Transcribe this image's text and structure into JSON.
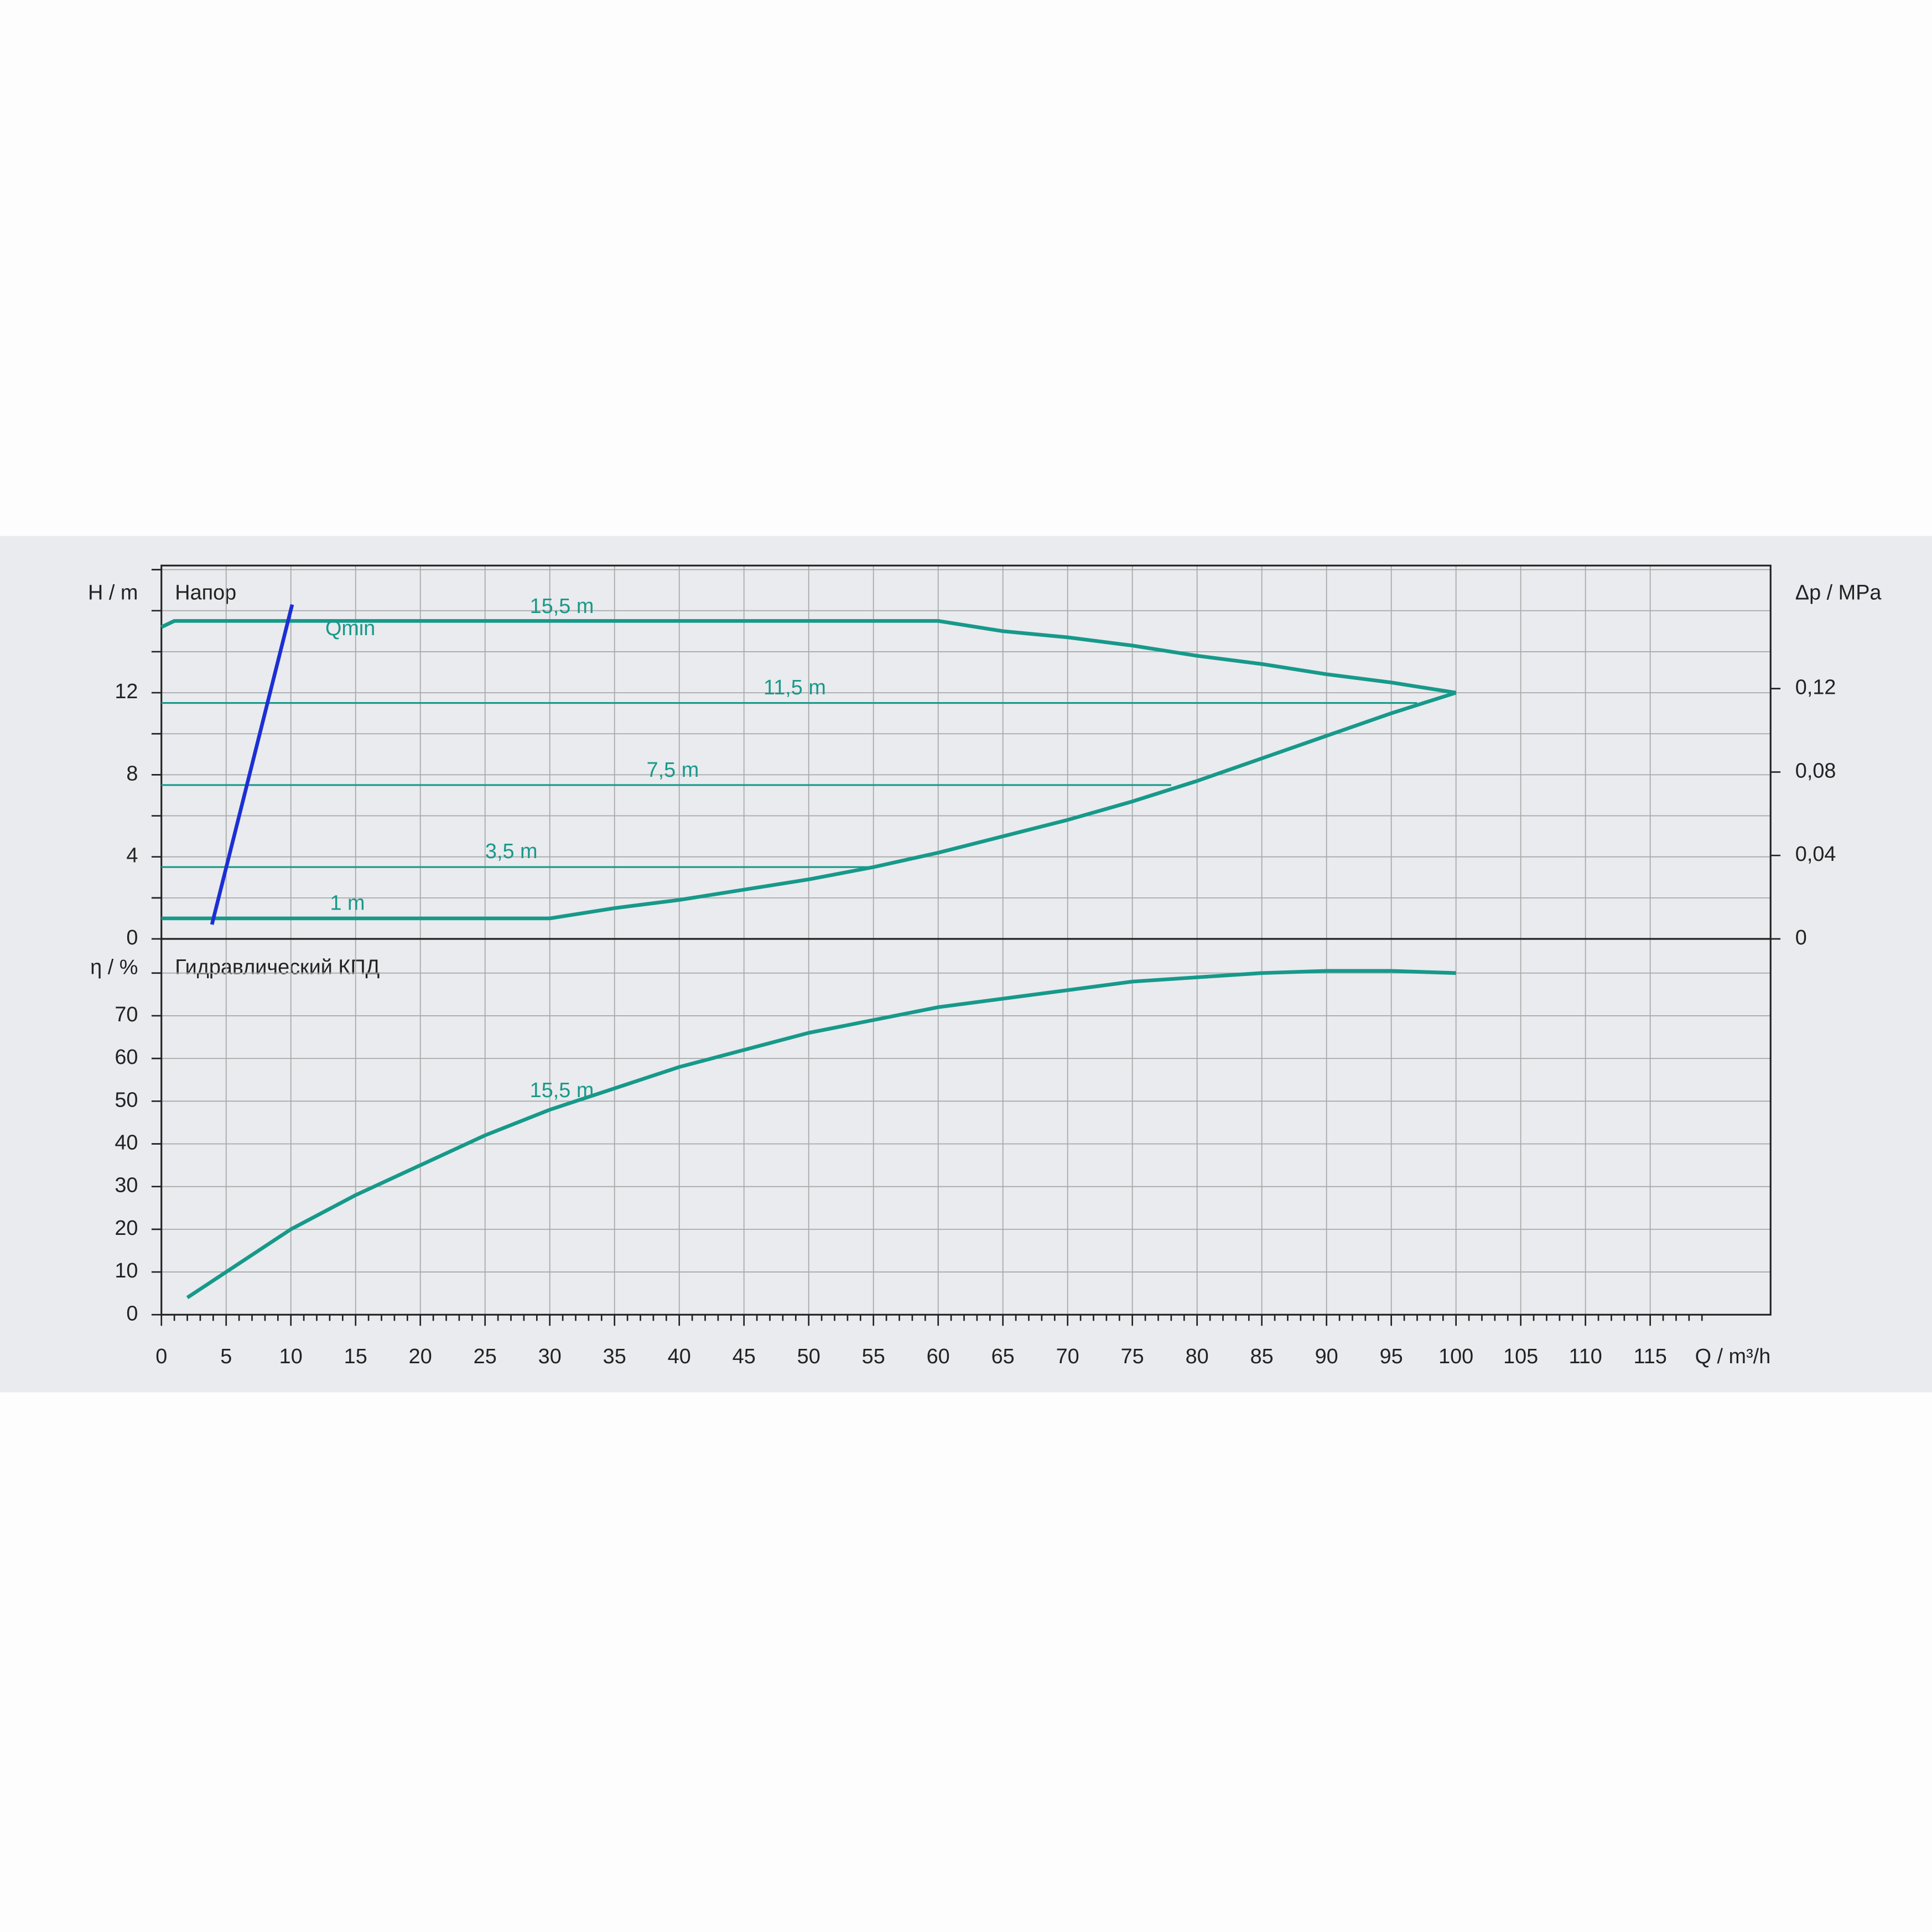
{
  "chart_data": [
    {
      "type": "line",
      "title": "Напор",
      "ylabel": "H / m",
      "y2label": "Δp / MPa",
      "ylim": [
        0,
        18.2
      ],
      "yticks": [
        0,
        4,
        8,
        12
      ],
      "y2lim": [
        0,
        0.179
      ],
      "y2ticks": [
        0,
        {
          "value": 0.04,
          "label": "0,04"
        },
        {
          "value": 0.08,
          "label": "0,08"
        },
        {
          "value": 0.12,
          "label": "0,12"
        }
      ],
      "grid": true,
      "series": [
        {
          "name": "15,5 m",
          "color": "#17998a",
          "x": [
            0,
            1,
            5,
            10,
            20,
            30,
            40,
            50,
            60,
            65,
            70,
            75,
            80,
            85,
            90,
            95,
            100
          ],
          "values": [
            15.2,
            15.5,
            15.5,
            15.5,
            15.5,
            15.5,
            15.5,
            15.5,
            15.5,
            15.0,
            14.7,
            14.3,
            13.8,
            13.4,
            12.9,
            12.5,
            12.0
          ]
        },
        {
          "name": "11,5 m",
          "color": "#17998a",
          "x": [
            0,
            97
          ],
          "values": [
            11.5,
            11.5
          ]
        },
        {
          "name": "7,5 m",
          "color": "#17998a",
          "x": [
            0,
            78
          ],
          "values": [
            7.5,
            7.5
          ]
        },
        {
          "name": "3,5 m",
          "color": "#17998a",
          "x": [
            0,
            55
          ],
          "values": [
            3.5,
            3.5
          ]
        },
        {
          "name": "1 m",
          "color": "#17998a",
          "x": [
            0,
            10,
            20,
            30,
            35,
            40,
            45,
            50,
            55,
            60,
            65,
            70,
            75,
            80,
            85,
            90,
            95,
            100
          ],
          "values": [
            1,
            1,
            1,
            1,
            1.5,
            1.9,
            2.4,
            2.9,
            3.5,
            4.2,
            5.0,
            5.8,
            6.7,
            7.7,
            8.8,
            9.9,
            11.0,
            12.0
          ]
        },
        {
          "name": "Qmin",
          "color": "#1c2fd4",
          "x": [
            3.9,
            10.1
          ],
          "values": [
            0.7,
            16.3
          ]
        }
      ]
    },
    {
      "type": "line",
      "title": "Гидравлический КПД",
      "ylabel": "η / %",
      "xlabel": "Q / m³/h",
      "xlim": [
        0,
        124.3
      ],
      "xticks": [
        0,
        5,
        10,
        15,
        20,
        25,
        30,
        35,
        40,
        45,
        50,
        55,
        60,
        65,
        70,
        75,
        80,
        85,
        90,
        95,
        100,
        105,
        110,
        115
      ],
      "ylim": [
        0,
        88
      ],
      "yticks": [
        0,
        10,
        20,
        30,
        40,
        50,
        60,
        70
      ],
      "grid": true,
      "series": [
        {
          "name": "15,5 m",
          "color": "#17998a",
          "x": [
            2,
            5,
            10,
            15,
            20,
            25,
            30,
            35,
            40,
            45,
            50,
            55,
            60,
            65,
            70,
            75,
            80,
            85,
            90,
            95,
            100
          ],
          "values": [
            4,
            10,
            20,
            28,
            35,
            42,
            48,
            53,
            58,
            62,
            66,
            69,
            72,
            74,
            76,
            78,
            79,
            80,
            80.5,
            80.5,
            80
          ]
        }
      ]
    }
  ]
}
